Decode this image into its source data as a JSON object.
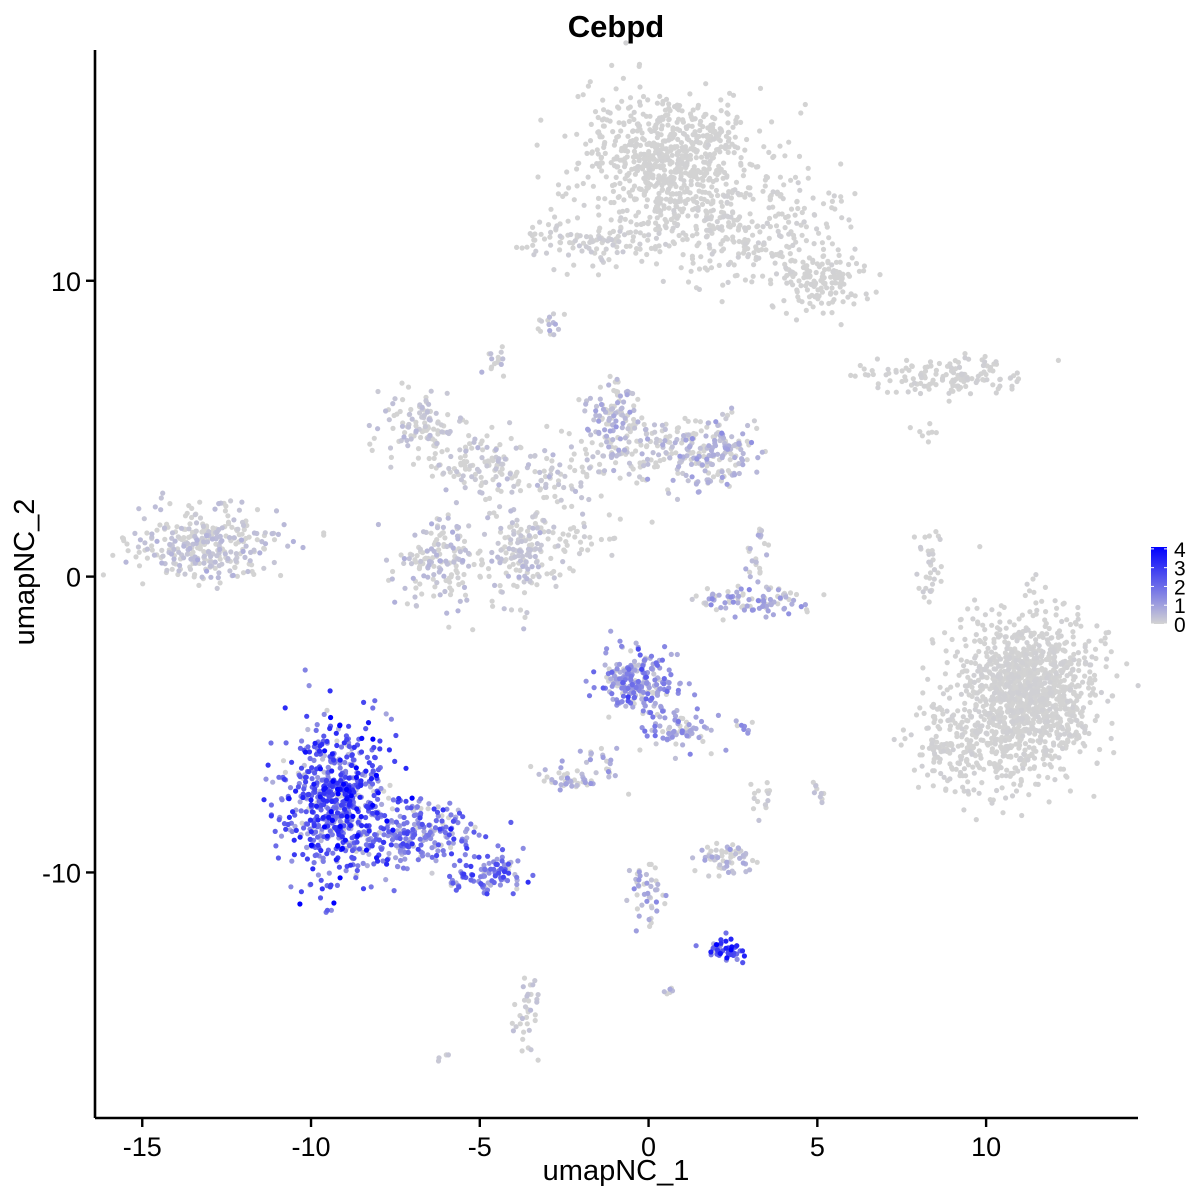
{
  "chart_data": {
    "type": "scatter",
    "title": "Cebpd",
    "xlabel": "umapNC_1",
    "ylabel": "umapNC_2",
    "xlim": [
      -16.4,
      14.5
    ],
    "ylim": [
      -18.3,
      17.8
    ],
    "x_ticks": [
      -15,
      -10,
      -5,
      0,
      5,
      10
    ],
    "x_tick_labels": [
      "-15",
      "-10",
      "-5",
      "0",
      "5",
      "10"
    ],
    "y_ticks": [
      -10,
      0,
      10
    ],
    "y_tick_labels": [
      "-10",
      "0",
      "10"
    ],
    "grid": false,
    "color_scale": {
      "low_color": "#d3d3d3",
      "high_color": "#0000ff",
      "min": 0,
      "max": 4.1,
      "legend_ticks": [
        0,
        1,
        2,
        3,
        4
      ],
      "legend_labels": [
        "0",
        "1",
        "2",
        "3",
        "4"
      ],
      "legend_position": "right"
    },
    "clusters": [
      {
        "cx": 0.6,
        "cy": 14.2,
        "sx": 1.3,
        "sy": 1.1,
        "n": 700,
        "expr": 0.02
      },
      {
        "cx": 2.8,
        "cy": 11.8,
        "sx": 1.6,
        "sy": 0.9,
        "n": 320,
        "expr": 0.05
      },
      {
        "cx": 5.2,
        "cy": 10.0,
        "sx": 0.7,
        "sy": 0.5,
        "n": 140,
        "expr": 0.02
      },
      {
        "cx": -2.0,
        "cy": 11.4,
        "sx": 1.0,
        "sy": 0.4,
        "n": 100,
        "expr": 0.1
      },
      {
        "cx": 8.8,
        "cy": 6.8,
        "sx": 1.2,
        "sy": 0.3,
        "n": 140,
        "expr": 0.05
      },
      {
        "cx": -2.9,
        "cy": 8.6,
        "sx": 0.2,
        "sy": 0.2,
        "n": 15,
        "expr": 0.6
      },
      {
        "cx": -4.6,
        "cy": 7.3,
        "sx": 0.2,
        "sy": 0.3,
        "n": 15,
        "expr": 0.3
      },
      {
        "cx": -13.2,
        "cy": 1.1,
        "sx": 1.1,
        "sy": 0.6,
        "n": 320,
        "expr": 0.35
      },
      {
        "cx": -6.8,
        "cy": 5.2,
        "sx": 0.6,
        "sy": 0.6,
        "n": 110,
        "expr": 0.3
      },
      {
        "cx": -5.0,
        "cy": 3.8,
        "sx": 0.9,
        "sy": 0.6,
        "n": 110,
        "expr": 0.25
      },
      {
        "cx": -6.2,
        "cy": 0.6,
        "sx": 0.6,
        "sy": 0.7,
        "n": 150,
        "expr": 0.4
      },
      {
        "cx": -3.9,
        "cy": 0.7,
        "sx": 0.6,
        "sy": 0.8,
        "n": 170,
        "expr": 0.3
      },
      {
        "cx": -2.5,
        "cy": 3.3,
        "sx": 1.0,
        "sy": 0.7,
        "n": 90,
        "expr": 0.3
      },
      {
        "cx": -1.0,
        "cy": 5.4,
        "sx": 0.4,
        "sy": 0.6,
        "n": 110,
        "expr": 0.6
      },
      {
        "cx": 0.2,
        "cy": 4.2,
        "sx": 0.8,
        "sy": 0.5,
        "n": 90,
        "expr": 0.35
      },
      {
        "cx": 1.8,
        "cy": 4.2,
        "sx": 0.7,
        "sy": 0.6,
        "n": 180,
        "expr": 0.6
      },
      {
        "cx": -1.8,
        "cy": 1.2,
        "sx": 0.6,
        "sy": 0.4,
        "n": 25,
        "expr": 0.1
      },
      {
        "cx": 3.0,
        "cy": -0.8,
        "sx": 0.9,
        "sy": 0.25,
        "n": 90,
        "expr": 0.9
      },
      {
        "cx": 3.2,
        "cy": 0.6,
        "sx": 0.2,
        "sy": 0.5,
        "n": 25,
        "expr": 0.5
      },
      {
        "cx": 8.3,
        "cy": 0.3,
        "sx": 0.2,
        "sy": 0.7,
        "n": 35,
        "expr": 0.1
      },
      {
        "cx": 8.2,
        "cy": 4.8,
        "sx": 0.25,
        "sy": 0.2,
        "n": 8,
        "expr": 0.0
      },
      {
        "cx": 11.2,
        "cy": -3.9,
        "sx": 1.0,
        "sy": 1.3,
        "n": 1300,
        "expr": 0.04
      },
      {
        "cx": 9.0,
        "cy": -5.8,
        "sx": 0.6,
        "sy": 0.8,
        "n": 150,
        "expr": 0.05
      },
      {
        "cx": -0.3,
        "cy": -3.6,
        "sx": 0.6,
        "sy": 0.5,
        "n": 220,
        "expr": 1.2
      },
      {
        "cx": 0.9,
        "cy": -5.2,
        "sx": 0.6,
        "sy": 0.35,
        "n": 70,
        "expr": 1.0
      },
      {
        "cx": -1.5,
        "cy": -6.3,
        "sx": 0.4,
        "sy": 0.4,
        "n": 25,
        "expr": 0.7
      },
      {
        "cx": -2.4,
        "cy": -6.8,
        "sx": 0.4,
        "sy": 0.2,
        "n": 40,
        "expr": 0.6
      },
      {
        "cx": 2.8,
        "cy": -5.0,
        "sx": 0.15,
        "sy": 0.1,
        "n": 8,
        "expr": 1.0
      },
      {
        "cx": -9.2,
        "cy": -7.6,
        "sx": 0.8,
        "sy": 1.3,
        "n": 650,
        "expr": 2.3
      },
      {
        "cx": -6.8,
        "cy": -8.8,
        "sx": 1.0,
        "sy": 0.6,
        "n": 240,
        "expr": 1.6
      },
      {
        "cx": -4.7,
        "cy": -10.1,
        "sx": 0.6,
        "sy": 0.25,
        "n": 90,
        "expr": 1.8
      },
      {
        "cx": 2.3,
        "cy": -9.5,
        "sx": 0.5,
        "sy": 0.3,
        "n": 60,
        "expr": 0.5
      },
      {
        "cx": 3.3,
        "cy": -7.5,
        "sx": 0.2,
        "sy": 0.3,
        "n": 15,
        "expr": 0.2
      },
      {
        "cx": 5.0,
        "cy": -7.3,
        "sx": 0.1,
        "sy": 0.2,
        "n": 10,
        "expr": 0.3
      },
      {
        "cx": 0.0,
        "cy": -10.8,
        "sx": 0.3,
        "sy": 0.6,
        "n": 45,
        "expr": 0.8
      },
      {
        "cx": 2.2,
        "cy": -12.6,
        "sx": 0.3,
        "sy": 0.2,
        "n": 50,
        "expr": 2.3
      },
      {
        "cx": 0.6,
        "cy": -14.0,
        "sx": 0.1,
        "sy": 0.1,
        "n": 6,
        "expr": 1.0
      },
      {
        "cx": -3.6,
        "cy": -14.8,
        "sx": 0.2,
        "sy": 0.6,
        "n": 35,
        "expr": 0.3
      },
      {
        "cx": -6.1,
        "cy": -16.2,
        "sx": 0.1,
        "sy": 0.1,
        "n": 4,
        "expr": 0.2
      }
    ]
  }
}
